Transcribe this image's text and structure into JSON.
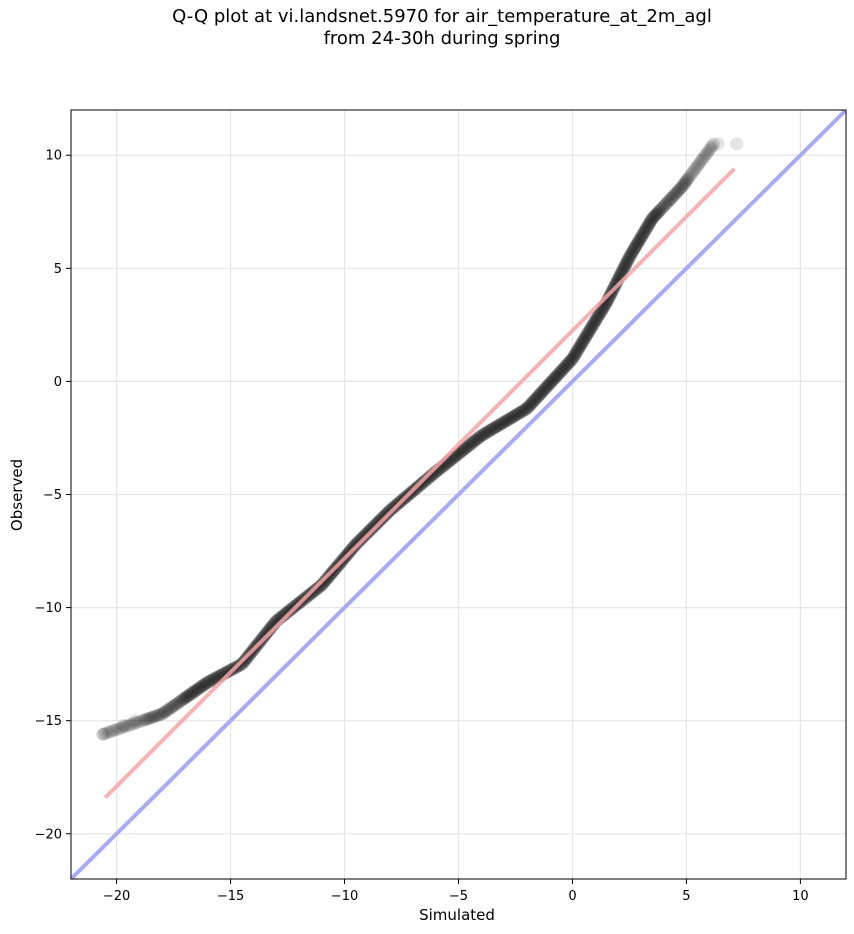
{
  "chart_data": {
    "type": "scatter",
    "title_line1": "Q-Q plot at vi.landsnet.5970 for air_temperature_at_2m_agl",
    "title_line2": "from 24-30h during spring",
    "xlabel": "Simulated",
    "ylabel": "Observed",
    "xlim": [
      -22,
      12
    ],
    "ylim": [
      -22,
      12
    ],
    "xticks": [
      -20,
      -15,
      -10,
      -5,
      0,
      5,
      10
    ],
    "yticks": [
      -20,
      -15,
      -10,
      -5,
      0,
      5,
      10
    ],
    "grid": true,
    "colors": {
      "points": "#000000",
      "fit_line": "#f4a6a6",
      "identity_line": "#a9aaf5",
      "grid": "#e6e6e6"
    },
    "fit_line": {
      "x": [
        -20.5,
        7.1
      ],
      "y": [
        -18.4,
        9.4
      ]
    },
    "identity_line": {
      "x": [
        -22,
        12
      ],
      "y": [
        -22,
        12
      ]
    },
    "curve_knots": [
      [
        -20.6,
        -15.6
      ],
      [
        -18.0,
        -14.7
      ],
      [
        -16.0,
        -13.3
      ],
      [
        -14.5,
        -12.5
      ],
      [
        -13.0,
        -10.6
      ],
      [
        -11.0,
        -9.0
      ],
      [
        -9.5,
        -7.2
      ],
      [
        -8.0,
        -5.7
      ],
      [
        -6.0,
        -4.0
      ],
      [
        -4.0,
        -2.4
      ],
      [
        -2.0,
        -1.2
      ],
      [
        0.0,
        1.0
      ],
      [
        1.5,
        3.5
      ],
      [
        2.5,
        5.5
      ],
      [
        3.5,
        7.2
      ],
      [
        4.8,
        8.6
      ],
      [
        6.2,
        10.5
      ]
    ],
    "outliers": [
      [
        -20.6,
        -15.6
      ],
      [
        -19.7,
        -15.2
      ],
      [
        -19.2,
        -15.0
      ],
      [
        6.4,
        10.5
      ],
      [
        7.2,
        10.5
      ]
    ]
  }
}
